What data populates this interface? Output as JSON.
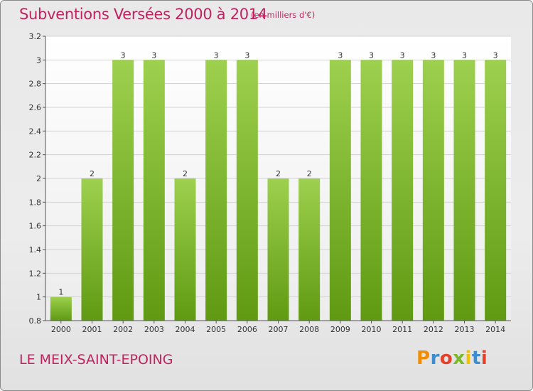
{
  "header": {
    "title": "Subventions Versées 2000 à 2014",
    "unit": "(en milliers d'€)"
  },
  "footer": {
    "location": "LE MEIX-SAINT-EPOING",
    "logo_text": "Proxiti"
  },
  "colors": {
    "title": "#c0235f",
    "bar_light": "#9dd04e",
    "bar_dark": "#5f9a12",
    "logo_letters": [
      "#f28c00",
      "#3d8dcf",
      "#e63f2a",
      "#7ab929",
      "#f2c100",
      "#3d8dcf",
      "#e63f2a"
    ]
  },
  "chart_data": {
    "type": "bar",
    "categories": [
      "2000",
      "2001",
      "2002",
      "2003",
      "2004",
      "2005",
      "2006",
      "2007",
      "2008",
      "2009",
      "2010",
      "2011",
      "2012",
      "2013",
      "2014"
    ],
    "values": [
      1,
      2,
      3,
      3,
      2,
      3,
      3,
      2,
      2,
      3,
      3,
      3,
      3,
      3,
      3
    ],
    "value_labels": [
      "1",
      "2",
      "3",
      "3",
      "2",
      "3",
      "3",
      "2",
      "2",
      "3",
      "3",
      "3",
      "3",
      "3",
      "3"
    ],
    "ylim": [
      0.8,
      3.2
    ],
    "yticks": [
      0.8,
      1,
      1.2,
      1.4,
      1.6,
      1.8,
      2,
      2.2,
      2.4,
      2.6,
      2.8,
      3,
      3.2
    ],
    "ytick_labels": [
      "0.8",
      "1",
      "1.2",
      "1.4",
      "1.6",
      "1.8",
      "2",
      "2.2",
      "2.4",
      "2.6",
      "2.8",
      "3",
      "3.2"
    ],
    "grid": true,
    "xlabel": "",
    "ylabel": ""
  }
}
